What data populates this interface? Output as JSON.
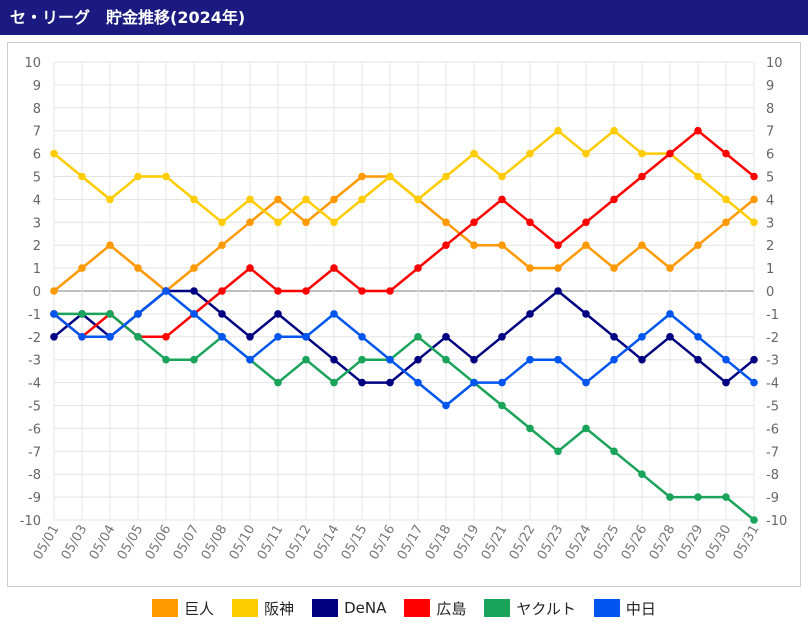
{
  "header": {
    "title": "セ・リーグ　貯金推移(2024年)"
  },
  "chart_data": {
    "type": "line",
    "categories": [
      "05/01",
      "05/03",
      "05/04",
      "05/05",
      "05/06",
      "05/07",
      "05/08",
      "05/10",
      "05/11",
      "05/12",
      "05/14",
      "05/15",
      "05/16",
      "05/17",
      "05/18",
      "05/19",
      "05/21",
      "05/22",
      "05/23",
      "05/24",
      "05/25",
      "05/26",
      "05/28",
      "05/29",
      "05/30",
      "05/31"
    ],
    "ylim": [
      -10,
      10
    ],
    "yticks": [
      10,
      9,
      8,
      7,
      6,
      5,
      4,
      3,
      2,
      1,
      0,
      -1,
      -2,
      -3,
      -4,
      -5,
      -6,
      -7,
      -8,
      -9,
      -10
    ],
    "grid": true,
    "legend_position": "bottom",
    "series": [
      {
        "name": "巨人",
        "color": "#ff9900",
        "values": [
          0,
          1,
          2,
          1,
          0,
          1,
          2,
          3,
          4,
          3,
          4,
          5,
          5,
          4,
          3,
          2,
          2,
          1,
          1,
          2,
          1,
          2,
          1,
          2,
          3,
          4
        ]
      },
      {
        "name": "阪神",
        "color": "#ffcc00",
        "values": [
          6,
          5,
          4,
          5,
          5,
          4,
          3,
          4,
          3,
          4,
          3,
          4,
          5,
          4,
          5,
          6,
          5,
          6,
          7,
          6,
          7,
          6,
          6,
          5,
          4,
          3
        ]
      },
      {
        "name": "DeNA",
        "color": "#000080",
        "values": [
          -2,
          -1,
          -2,
          -1,
          0,
          0,
          -1,
          -2,
          -1,
          -2,
          -3,
          -4,
          -4,
          -3,
          -2,
          -3,
          -2,
          -1,
          0,
          -1,
          -2,
          -3,
          -2,
          -3,
          -4,
          -3
        ]
      },
      {
        "name": "広島",
        "color": "#ff0000",
        "values": [
          -1,
          -2,
          -1,
          -2,
          -2,
          -1,
          0,
          1,
          0,
          0,
          1,
          0,
          0,
          1,
          2,
          3,
          4,
          3,
          2,
          3,
          4,
          5,
          6,
          7,
          6,
          5
        ]
      },
      {
        "name": "ヤクルト",
        "color": "#1aa35a",
        "values": [
          -1,
          -1,
          -1,
          -2,
          -3,
          -3,
          -2,
          -3,
          -4,
          -3,
          -4,
          -3,
          -3,
          -2,
          -3,
          -4,
          -5,
          -6,
          -7,
          -6,
          -7,
          -8,
          -9,
          -9,
          -9,
          -10
        ]
      },
      {
        "name": "中日",
        "color": "#0055ee",
        "values": [
          -1,
          -2,
          -2,
          -1,
          0,
          -1,
          -2,
          -3,
          -2,
          -2,
          -1,
          -2,
          -3,
          -4,
          -5,
          -4,
          -4,
          -3,
          -3,
          -4,
          -3,
          -2,
          -1,
          -2,
          -3,
          -4
        ]
      }
    ]
  }
}
